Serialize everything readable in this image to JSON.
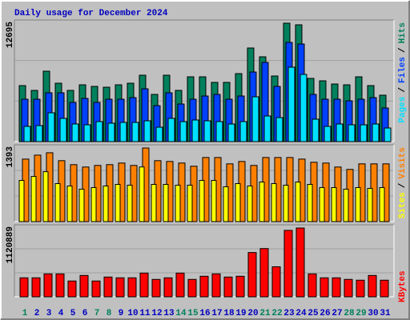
{
  "chart_data": [
    {
      "type": "bar",
      "title": "Daily usage for December 2024",
      "separator": "/",
      "ylim": [
        0,
        12695
      ],
      "yticks": [
        12695
      ],
      "series": [
        {
          "name": "Hits",
          "color": "#00805c",
          "values": [
            6005,
            5490,
            7549,
            6262,
            5490,
            6090,
            5919,
            5833,
            6090,
            6262,
            7120,
            5061,
            7120,
            5490,
            6948,
            6948,
            6348,
            6348,
            7291,
            10036,
            9093,
            7034,
            12695,
            12524,
            6777,
            6519,
            6176,
            6090,
            6948,
            6005,
            4975
          ]
        },
        {
          "name": "Files",
          "color": "#0040ff",
          "values": [
            4546,
            4546,
            5233,
            5233,
            4203,
            4632,
            4203,
            4546,
            4546,
            4718,
            5661,
            3860,
            5233,
            4032,
            4546,
            4889,
            5061,
            4546,
            4889,
            7463,
            8492,
            5919,
            10637,
            10465,
            5061,
            4546,
            4546,
            4375,
            4546,
            4718,
            3603
          ]
        },
        {
          "name": "Pages",
          "color": "#00e0ff",
          "values": [
            1630,
            1716,
            3088,
            2488,
            1887,
            1801,
            2145,
            1973,
            2059,
            2059,
            2230,
            1544,
            2488,
            2145,
            2316,
            2230,
            2145,
            1887,
            2145,
            4804,
            2745,
            2573,
            7978,
            7206,
            2402,
            1630,
            1887,
            1801,
            1801,
            1887,
            1458
          ]
        }
      ]
    },
    {
      "type": "bar",
      "ylim": [
        0,
        1393
      ],
      "yticks": [
        1393
      ],
      "series": [
        {
          "name": "Visits",
          "color": "#ff8000",
          "values": [
            1183,
            1258,
            1303,
            1153,
            1078,
            1033,
            1063,
            1078,
            1108,
            1063,
            1393,
            1153,
            1138,
            1108,
            1048,
            1213,
            1213,
            1093,
            1138,
            1063,
            1213,
            1213,
            1213,
            1183,
            1123,
            1108,
            1033,
            988,
            1093,
            1093,
            1093
          ]
        },
        {
          "name": "Sites",
          "color": "#ffff00",
          "values": [
            779,
            854,
            944,
            719,
            674,
            614,
            644,
            674,
            704,
            689,
            1034,
            704,
            704,
            689,
            689,
            779,
            779,
            659,
            719,
            674,
            749,
            719,
            689,
            749,
            704,
            644,
            644,
            614,
            644,
            629,
            644
          ]
        }
      ]
    },
    {
      "type": "bar",
      "ylim": [
        0,
        1120889
      ],
      "yticks": [
        1120889
      ],
      "categories": [
        "1",
        "2",
        "3",
        "4",
        "5",
        "6",
        "7",
        "8",
        "9",
        "10",
        "11",
        "12",
        "13",
        "14",
        "15",
        "16",
        "17",
        "18",
        "19",
        "20",
        "21",
        "22",
        "23",
        "24",
        "25",
        "26",
        "27",
        "28",
        "29",
        "30",
        "31"
      ],
      "category_colors": [
        "#00805c",
        "#0000c0",
        "#0000c0",
        "#0000c0",
        "#0000c0",
        "#0000c0",
        "#00805c",
        "#00805c",
        "#0000c0",
        "#0000c0",
        "#0000c0",
        "#0000c0",
        "#0000c0",
        "#00805c",
        "#00805c",
        "#0000c0",
        "#0000c0",
        "#0000c0",
        "#0000c0",
        "#0000c0",
        "#00805c",
        "#00805c",
        "#0000c0",
        "#0000c0",
        "#0000c0",
        "#0000c0",
        "#0000c0",
        "#00805c",
        "#00805c",
        "#0000c0",
        "#0000c0"
      ],
      "series": [
        {
          "name": "KBytes",
          "color": "#ff0000",
          "values": [
            309216,
            309216,
            373636,
            373636,
            257680,
            347868,
            257680,
            322100,
            309216,
            309216,
            386520,
            283448,
            309216,
            386520,
            283448,
            334984,
            373636,
            322100,
            334984,
            721504,
            785924,
            489592,
            1082256,
            1120889,
            373636,
            309216,
            309216,
            283448,
            270564,
            347868,
            270564
          ]
        }
      ]
    }
  ]
}
